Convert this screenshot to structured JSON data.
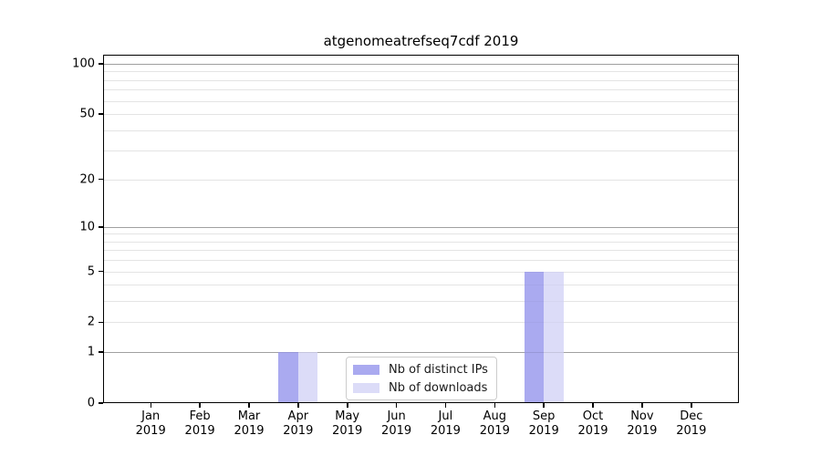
{
  "chart_data": {
    "type": "bar",
    "title": "atgenomeatrefseq7cdf 2019",
    "categories": [
      "Jan 2019",
      "Feb 2019",
      "Mar 2019",
      "Apr 2019",
      "May 2019",
      "Jun 2019",
      "Jul 2019",
      "Aug 2019",
      "Sep 2019",
      "Oct 2019",
      "Nov 2019",
      "Dec 2019"
    ],
    "series": [
      {
        "name": "Nb of distinct IPs",
        "color": "#aaaaf0",
        "values": [
          0,
          0,
          0,
          1,
          0,
          0,
          0,
          0,
          5,
          0,
          0,
          0
        ]
      },
      {
        "name": "Nb of downloads",
        "color": "#dcdcf8",
        "values": [
          0,
          0,
          0,
          1,
          0,
          0,
          0,
          0,
          5,
          0,
          0,
          0
        ]
      }
    ],
    "yscale": "log1p",
    "ylim": [
      0,
      113.3
    ],
    "yticks": [
      0,
      1,
      2,
      5,
      10,
      20,
      50,
      100
    ],
    "major_gridlines": [
      1,
      10,
      100
    ],
    "minor_gridlines": [
      2,
      3,
      4,
      5,
      6,
      7,
      8,
      9,
      20,
      30,
      40,
      50,
      60,
      70,
      80,
      90
    ],
    "grid": true,
    "legend_position": "lower center",
    "xlabel": "",
    "ylabel": ""
  },
  "colors": {
    "major_grid": "#b3b3b3",
    "minor_grid": "#ececec",
    "major_grid_overlay": "rgba(0,0,0,0.10)",
    "minor_grid_overlay": "rgba(0,0,0,0.03)",
    "axis": "#000000"
  }
}
